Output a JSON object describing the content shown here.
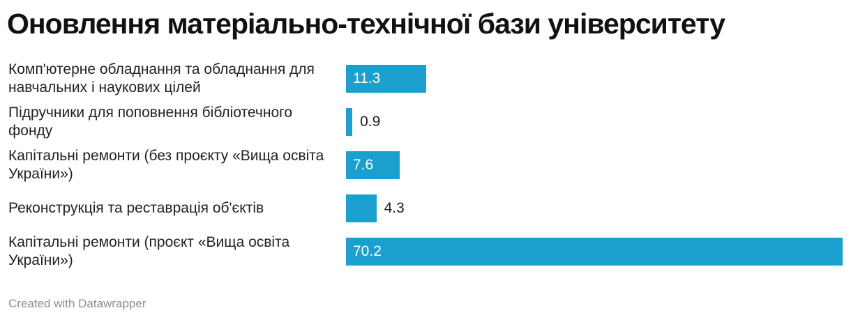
{
  "header": {
    "title": "Оновлення матеріально-технічної бази університету"
  },
  "footer": {
    "credit": "Created with Datawrapper"
  },
  "colors": {
    "bar": "#1a9fcf",
    "label_inside": "#ffffff",
    "label_outside": "#222222"
  },
  "chart_data": {
    "type": "bar",
    "orientation": "horizontal",
    "categories": [
      "Комп'ютерне обладнання та обладнання для навчальних і наукових цілей",
      "Підручники для поповнення бібліотечного фонду",
      "Капітальні ремонти (без проєкту «Вища освіта України»)",
      "Реконструкція та реставрація об'єктів",
      "Капітальні ремонти (проєкт «Вища освіта України»)"
    ],
    "values": [
      11.3,
      0.9,
      7.6,
      4.3,
      70.2
    ],
    "value_labels": [
      "11.3",
      "0.9",
      "7.6",
      "4.3",
      "70.2"
    ],
    "xlim": [
      0,
      70.2
    ],
    "grid": false,
    "legend": "none"
  }
}
